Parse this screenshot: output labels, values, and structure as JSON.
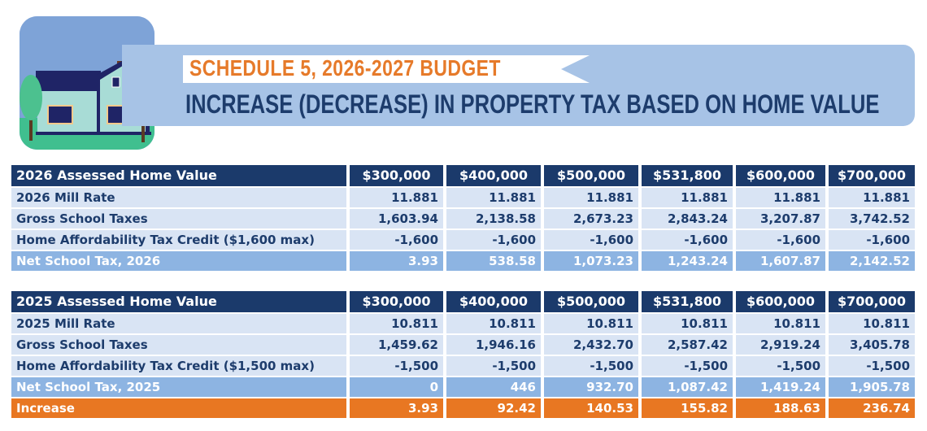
{
  "header": {
    "title": "SCHEDULE 5, 2026-2027 BUDGET",
    "subtitle": "INCREASE (DECREASE) IN PROPERTY TAX BASED ON HOME VALUE"
  },
  "colors": {
    "header_bg": "#1b3a6b",
    "row_bg": "#d9e4f4",
    "net_bg": "#8db4e2",
    "increase_bg": "#e87722",
    "title_orange": "#e67a2a"
  },
  "tables": [
    {
      "rows": [
        {
          "type": "hdr",
          "label": "2026 Assessed Home Value",
          "values": [
            "$300,000",
            "$400,000",
            "$500,000",
            "$531,800",
            "$600,000",
            "$700,000"
          ]
        },
        {
          "type": "body",
          "label": "2026 Mill Rate",
          "values": [
            "11.881",
            "11.881",
            "11.881",
            "11.881",
            "11.881",
            "11.881"
          ]
        },
        {
          "type": "body",
          "label": "Gross School Taxes",
          "values": [
            "1,603.94",
            "2,138.58",
            "2,673.23",
            "2,843.24",
            "3,207.87",
            "3,742.52"
          ]
        },
        {
          "type": "body",
          "label": "Home Affordability Tax Credit ($1,600 max)",
          "values": [
            "-1,600",
            "-1,600",
            "-1,600",
            "-1,600",
            "-1,600",
            "-1,600"
          ]
        },
        {
          "type": "net",
          "label": "Net School Tax, 2026",
          "values": [
            "3.93",
            "538.58",
            "1,073.23",
            "1,243.24",
            "1,607.87",
            "2,142.52"
          ]
        }
      ]
    },
    {
      "rows": [
        {
          "type": "hdr",
          "label": "2025 Assessed Home Value",
          "values": [
            "$300,000",
            "$400,000",
            "$500,000",
            "$531,800",
            "$600,000",
            "$700,000"
          ]
        },
        {
          "type": "body",
          "label": "2025 Mill Rate",
          "values": [
            "10.811",
            "10.811",
            "10.811",
            "10.811",
            "10.811",
            "10.811"
          ]
        },
        {
          "type": "body",
          "label": "Gross School Taxes",
          "values": [
            "1,459.62",
            "1,946.16",
            "2,432.70",
            "2,587.42",
            "2,919.24",
            "3,405.78"
          ]
        },
        {
          "type": "body",
          "label": "Home Affordability Tax Credit ($1,500 max)",
          "values": [
            "-1,500",
            "-1,500",
            "-1,500",
            "-1,500",
            "-1,500",
            "-1,500"
          ]
        },
        {
          "type": "net",
          "label": "Net School Tax, 2025",
          "values": [
            "0",
            "446",
            "932.70",
            "1,087.42",
            "1,419.24",
            "1,905.78"
          ]
        },
        {
          "type": "inc",
          "label": "Increase",
          "values": [
            "3.93",
            "92.42",
            "140.53",
            "155.82",
            "188.63",
            "236.74"
          ]
        }
      ]
    }
  ]
}
